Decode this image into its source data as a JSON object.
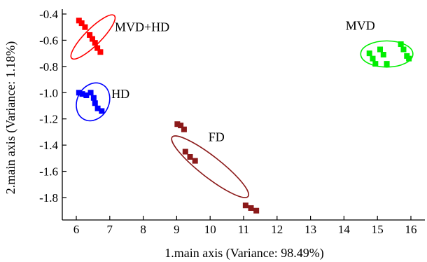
{
  "chart_data": {
    "type": "scatter",
    "title": "",
    "xlabel": "1.main axis (Variance: 98.49%)",
    "ylabel": "2.main axis (Variance: 1.18%)",
    "xlim": [
      5.6,
      16.3
    ],
    "ylim": [
      -1.95,
      -0.35
    ],
    "xticks": [
      6,
      7,
      8,
      9,
      10,
      11,
      12,
      13,
      14,
      15,
      16
    ],
    "yticks": [
      -0.4,
      -0.6,
      -0.8,
      -1.0,
      -1.2,
      -1.4,
      -1.6,
      -1.8
    ],
    "ytick_labels": [
      "-0.4",
      "-0.6",
      "-0.8",
      "-1.0",
      "-1.2",
      "-1.4",
      "-1.6",
      "-1.8"
    ],
    "xtick_labels": [
      "6",
      "7",
      "8",
      "9",
      "10",
      "11",
      "12",
      "13",
      "14",
      "15",
      "16"
    ],
    "grid": false,
    "series": [
      {
        "name": "MVD+HD",
        "color": "#ff0000",
        "points": [
          [
            6.08,
            -0.45
          ],
          [
            6.16,
            -0.47
          ],
          [
            6.26,
            -0.5
          ],
          [
            6.4,
            -0.56
          ],
          [
            6.48,
            -0.59
          ],
          [
            6.56,
            -0.62
          ],
          [
            6.63,
            -0.66
          ],
          [
            6.72,
            -0.69
          ]
        ],
        "ellipse": {
          "cx": 6.5,
          "cy": -0.575,
          "rx_data": 0.28,
          "ry_data": 0.23,
          "angle": 45
        }
      },
      {
        "name": "HD",
        "color": "#0000ff",
        "points": [
          [
            6.08,
            -1.0
          ],
          [
            6.18,
            -1.01
          ],
          [
            6.3,
            -1.02
          ],
          [
            6.43,
            -1.0
          ],
          [
            6.52,
            -1.04
          ],
          [
            6.56,
            -1.08
          ],
          [
            6.64,
            -1.12
          ],
          [
            6.76,
            -1.14
          ]
        ],
        "ellipse": {
          "cx": 6.5,
          "cy": -1.07,
          "rx_data": 0.5,
          "ry_data": 0.15,
          "angle": 28
        }
      },
      {
        "name": "FD",
        "color": "#8b1a1a",
        "points": [
          [
            9.02,
            -1.24
          ],
          [
            9.12,
            -1.25
          ],
          [
            9.22,
            -1.28
          ],
          [
            9.26,
            -1.45
          ],
          [
            9.4,
            -1.49
          ],
          [
            9.55,
            -1.52
          ],
          [
            11.06,
            -1.86
          ],
          [
            11.22,
            -1.88
          ],
          [
            11.38,
            -1.9
          ]
        ],
        "ellipse": {
          "cx": 10.0,
          "cy": -1.565,
          "rx_data": 1.6,
          "ry_data": 0.08,
          "angle": 38
        }
      },
      {
        "name": "MVD",
        "color": "#00ee00",
        "points": [
          [
            14.76,
            -0.7
          ],
          [
            14.86,
            -0.74
          ],
          [
            14.94,
            -0.78
          ],
          [
            15.08,
            -0.67
          ],
          [
            15.18,
            -0.71
          ],
          [
            15.28,
            -0.78
          ],
          [
            15.7,
            -0.63
          ],
          [
            15.78,
            -0.67
          ],
          [
            15.88,
            -0.72
          ],
          [
            15.94,
            -0.74
          ]
        ],
        "ellipse": {
          "cx": 15.28,
          "cy": -0.705,
          "rx_data": 0.78,
          "ry_data": 0.1,
          "angle": 0
        }
      }
    ],
    "labels": [
      {
        "text": "MVD+HD",
        "x": 7.15,
        "y": -0.53
      },
      {
        "text": "HD",
        "x": 7.05,
        "y": -1.04
      },
      {
        "text": "FD",
        "x": 9.95,
        "y": -1.37
      },
      {
        "text": "MVD",
        "x": 14.05,
        "y": -0.52
      }
    ]
  }
}
